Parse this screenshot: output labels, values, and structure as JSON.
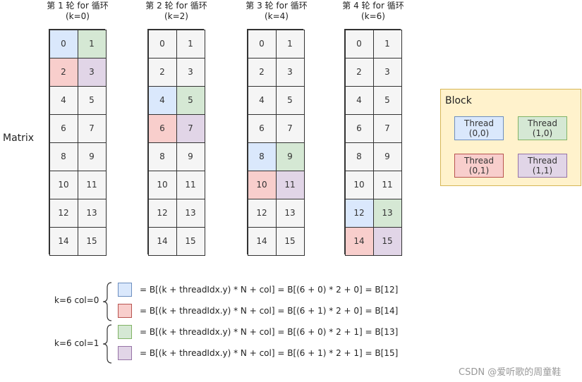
{
  "iterations": [
    {
      "title": "第 1 轮 for 循环",
      "subtitle": "(k=0)",
      "highlight_row": 0
    },
    {
      "title": "第 2 轮 for 循环",
      "subtitle": "(k=2)",
      "highlight_row": 2
    },
    {
      "title": "第 3 轮 for 循环",
      "subtitle": "(k=4)",
      "highlight_row": 4
    },
    {
      "title": "第 4 轮 for 循环",
      "subtitle": "(k=6)",
      "highlight_row": 6
    }
  ],
  "matrix_label": "Matrix",
  "cells": [
    "0",
    "1",
    "2",
    "3",
    "4",
    "5",
    "6",
    "7",
    "8",
    "9",
    "10",
    "11",
    "12",
    "13",
    "14",
    "15"
  ],
  "colors": {
    "blue_fill": "#dae8fc",
    "blue_stroke": "#6c8ebf",
    "green_fill": "#d5e8d4",
    "green_stroke": "#82b366",
    "red_fill": "#f8cecc",
    "red_stroke": "#b85450",
    "purple_fill": "#e1d5e7",
    "purple_stroke": "#9673a6",
    "block_fill": "#fff2cc",
    "block_stroke": "#d6b656",
    "cell_fill": "#f5f5f5"
  },
  "block": {
    "title": "Block",
    "threads": [
      {
        "label": "Thread",
        "coord": "(0,0)",
        "color": "blue"
      },
      {
        "label": "Thread",
        "coord": "(1,0)",
        "color": "green"
      },
      {
        "label": "Thread",
        "coord": "(0,1)",
        "color": "red"
      },
      {
        "label": "Thread",
        "coord": "(1,1)",
        "color": "purple"
      }
    ]
  },
  "legend": {
    "groups": [
      {
        "label": "k=6 col=0",
        "items": [
          {
            "color": "blue",
            "text": "= B[(k + threadIdx.y) * N + col] = B[(6 + 0) * 2 + 0] = B[12]"
          },
          {
            "color": "red",
            "text": "= B[(k + threadIdx.y) * N + col] = B[(6 + 1) * 2 + 0] = B[14]"
          }
        ]
      },
      {
        "label": "k=6 col=1",
        "items": [
          {
            "color": "green",
            "text": "= B[(k + threadIdx.y) * N + col] = B[(6 + 0) * 2 + 1] = B[13]"
          },
          {
            "color": "purple",
            "text": "= B[(k + threadIdx.y) * N + col] = B[(6 + 1) * 2 + 1] = B[15]"
          }
        ]
      }
    ]
  },
  "watermark": "CSDN @爱听歌的周童鞋"
}
